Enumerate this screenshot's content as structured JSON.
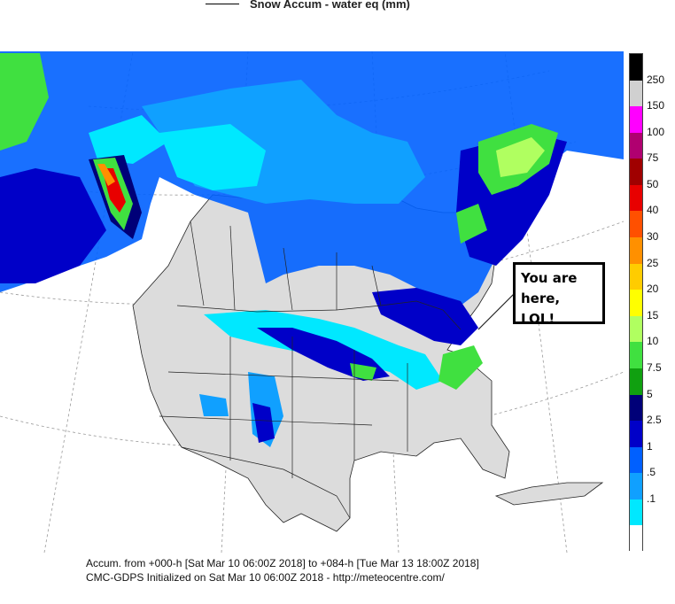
{
  "legend_title": "Snow Accum - water eq (mm)",
  "footer": {
    "line1": "Accum. from +000-h [Sat Mar 10 06:00Z 2018] to +084-h [Tue Mar 13 18:00Z 2018]",
    "line2": "CMC-GDPS Initialized on Sat Mar 10 06:00Z 2018 - http://meteocentre.com/"
  },
  "callout": {
    "line1": "You are",
    "line2": "here, LOL!"
  },
  "colorbar": {
    "ticks": [
      {
        "label": "250",
        "value": 250
      },
      {
        "label": "150",
        "value": 150
      },
      {
        "label": "100",
        "value": 100
      },
      {
        "label": "75",
        "value": 75
      },
      {
        "label": "50",
        "value": 50
      },
      {
        "label": "40",
        "value": 40
      },
      {
        "label": "30",
        "value": 30
      },
      {
        "label": "25",
        "value": 25
      },
      {
        "label": "20",
        "value": 20
      },
      {
        "label": "15",
        "value": 15
      },
      {
        "label": "10",
        "value": 10
      },
      {
        "label": "7.5",
        "value": 7.5
      },
      {
        "label": "5",
        "value": 5
      },
      {
        "label": "2.5",
        "value": 2.5
      },
      {
        "label": "1",
        "value": 1
      },
      {
        "label": ".5",
        "value": 0.5
      },
      {
        "label": ".1",
        "value": 0.1
      }
    ],
    "colors_top_to_bottom": [
      "#000000",
      "#d0d0d0",
      "#ff00ff",
      "#b00070",
      "#a00000",
      "#e80000",
      "#ff5000",
      "#ff9000",
      "#ffcc00",
      "#ffff00",
      "#b0ff60",
      "#40e040",
      "#10a010",
      "#000078",
      "#0000c8",
      "#0060ff",
      "#10a0ff",
      "#00e8ff",
      "#ffffff"
    ]
  },
  "colors": {
    "land": "#dcdcdc",
    "ocean": "#ffffff",
    "snow_light": "#00e8ff",
    "snow_medium": "#10a0ff",
    "snow_heavy": "#0000c8",
    "snow_dark": "#000078",
    "green": "#40e040",
    "red": "#e80000"
  }
}
